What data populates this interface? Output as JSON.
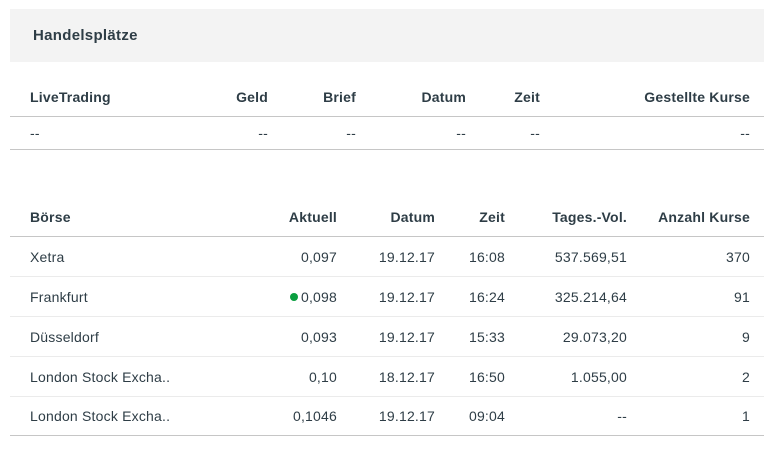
{
  "page": {
    "title": "Handelsplätze",
    "colors": {
      "band_bg": "#f3f3f3",
      "text": "#2e3d46",
      "line_strong": "#c6c6c6",
      "line_light": "#ebebeb",
      "dot_green": "#0a9e3f"
    }
  },
  "live_trading": {
    "columns": [
      "LiveTrading",
      "Geld",
      "Brief",
      "Datum",
      "Zeit",
      "Gestellte Kurse"
    ],
    "row": {
      "name": "--",
      "geld": "--",
      "brief": "--",
      "datum": "--",
      "zeit": "--",
      "gestellte_kurse": "--"
    }
  },
  "exchanges": {
    "columns": [
      "Börse",
      "Aktuell",
      "Datum",
      "Zeit",
      "Tages.-Vol.",
      "Anzahl Kurse"
    ],
    "rows": [
      {
        "name": "Xetra",
        "aktuell": "0,097",
        "datum": "19.12.17",
        "zeit": "16:08",
        "vol": "537.569,51",
        "anzahl": "370",
        "dot": false
      },
      {
        "name": "Frankfurt",
        "aktuell": "0,098",
        "datum": "19.12.17",
        "zeit": "16:24",
        "vol": "325.214,64",
        "anzahl": "91",
        "dot": true
      },
      {
        "name": "Düsseldorf",
        "aktuell": "0,093",
        "datum": "19.12.17",
        "zeit": "15:33",
        "vol": "29.073,20",
        "anzahl": "9",
        "dot": false
      },
      {
        "name": "London Stock Excha..",
        "aktuell": "0,10",
        "datum": "18.12.17",
        "zeit": "16:50",
        "vol": "1.055,00",
        "anzahl": "2",
        "dot": false
      },
      {
        "name": "London Stock Excha..",
        "aktuell": "0,1046",
        "datum": "19.12.17",
        "zeit": "09:04",
        "vol": "--",
        "anzahl": "1",
        "dot": false
      }
    ]
  }
}
